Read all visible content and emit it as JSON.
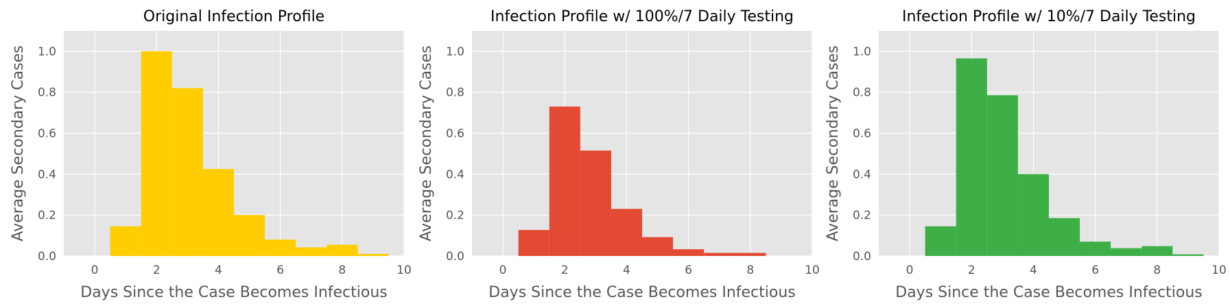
{
  "chart_data": [
    {
      "type": "bar",
      "title": "Original Infection Profile",
      "xlabel": "Days Since the Case Becomes Infectious",
      "ylabel": "Average Secondary Cases",
      "xlim": [
        -1,
        10
      ],
      "ylim": [
        0,
        1.1
      ],
      "xticks": [
        "0",
        "2",
        "4",
        "6",
        "8",
        "10"
      ],
      "yticks": [
        "0.0",
        "0.2",
        "0.4",
        "0.6",
        "0.8",
        "1.0"
      ],
      "grid": true,
      "color": "#ffcd00",
      "bar_width": 1,
      "x": [
        1,
        2,
        3,
        4,
        5,
        6,
        7,
        8,
        9
      ],
      "values": [
        0.145,
        1.0,
        0.82,
        0.425,
        0.2,
        0.08,
        0.042,
        0.055,
        0.01
      ]
    },
    {
      "type": "bar",
      "title": "Infection Profile  w/ 100%/7 Daily Testing",
      "xlabel": "Days Since the Case Becomes Infectious",
      "ylabel": "Average Secondary Cases",
      "xlim": [
        -1,
        10
      ],
      "ylim": [
        0,
        1.1
      ],
      "xticks": [
        "0",
        "2",
        "4",
        "6",
        "8",
        "10"
      ],
      "yticks": [
        "0.0",
        "0.2",
        "0.4",
        "0.6",
        "0.8",
        "1.0"
      ],
      "grid": true,
      "color": "#e24a33",
      "bar_width": 1,
      "x": [
        1,
        2,
        3,
        4,
        5,
        6,
        7,
        8
      ],
      "values": [
        0.127,
        0.73,
        0.515,
        0.23,
        0.092,
        0.033,
        0.015,
        0.015
      ]
    },
    {
      "type": "bar",
      "title": "Infection Profile  w/ 10%/7 Daily Testing",
      "xlabel": "Days Since the Case Becomes Infectious",
      "ylabel": "Average Secondary Cases",
      "xlim": [
        -1,
        10
      ],
      "ylim": [
        0,
        1.1
      ],
      "xticks": [
        "0",
        "2",
        "4",
        "6",
        "8",
        "10"
      ],
      "yticks": [
        "0.0",
        "0.2",
        "0.4",
        "0.6",
        "0.8",
        "1.0"
      ],
      "grid": true,
      "color": "#3daf46",
      "bar_width": 1,
      "x": [
        1,
        2,
        3,
        4,
        5,
        6,
        7,
        8,
        9
      ],
      "values": [
        0.145,
        0.965,
        0.785,
        0.4,
        0.185,
        0.07,
        0.038,
        0.048,
        0.008
      ]
    }
  ]
}
